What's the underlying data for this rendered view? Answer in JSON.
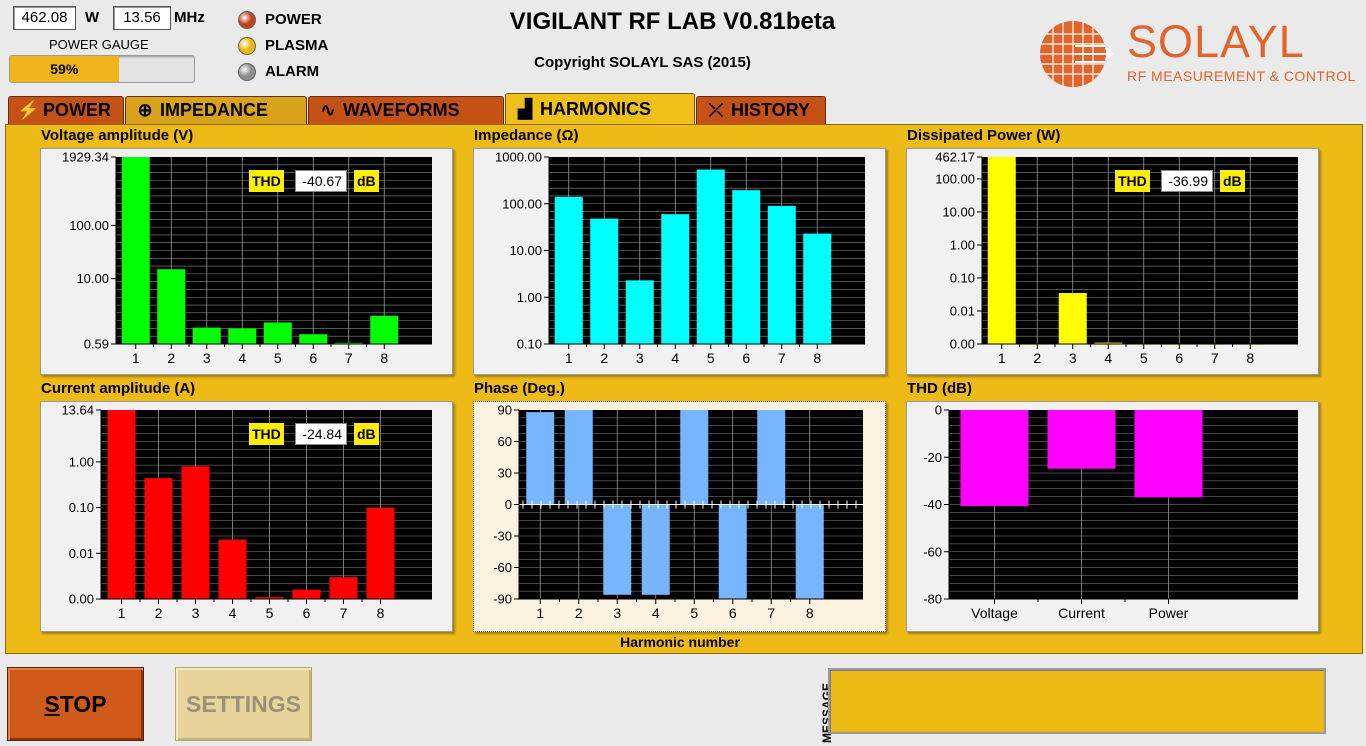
{
  "top": {
    "power_value": "462.08",
    "power_unit": "W",
    "freq_value": "13.56",
    "freq_unit": "MHz",
    "gauge_label": "POWER GAUGE",
    "gauge_text": "59%",
    "gauge_fraction": 0.59
  },
  "leds": [
    {
      "label": "POWER",
      "color": "#c3421a"
    },
    {
      "label": "PLASMA",
      "color": "#e8b80c"
    },
    {
      "label": "ALARM",
      "color": "#8e8e8e"
    }
  ],
  "title": "VIGILANT RF LAB V0.81beta",
  "copyright": "Copyright SOLAYL SAS (2015)",
  "logo": {
    "name": "SOLAYL",
    "tagline": "RF MEASUREMENT & CONTROL",
    "color": "#e1642b"
  },
  "tabs": [
    {
      "label": "POWER",
      "icon": "lightning-icon",
      "glyph": "⚡"
    },
    {
      "label": "IMPEDANCE",
      "icon": "smith-chart-icon",
      "glyph": "⊕"
    },
    {
      "label": "WAVEFORMS",
      "icon": "waveform-icon",
      "glyph": "∿"
    },
    {
      "label": "HARMONICS",
      "icon": "bar-chart-icon",
      "glyph": "▟"
    },
    {
      "label": "HISTORY",
      "icon": "history-icon",
      "glyph": "⤫"
    }
  ],
  "active_tab": "HARMONICS",
  "x_axis_title": "Harmonic number",
  "chart_data": [
    {
      "id": "voltage",
      "type": "bar",
      "title": "Voltage amplitude (V)",
      "color": "#00ff00",
      "scale": "log",
      "ylim": [
        0.59,
        1929.34
      ],
      "yticks": [
        {
          "v": 1929.34,
          "t": "1929.34"
        },
        {
          "v": 100,
          "t": "100.00"
        },
        {
          "v": 10,
          "t": "10.00"
        },
        {
          "v": 0.59,
          "t": "0.59"
        }
      ],
      "categories": [
        "1",
        "2",
        "3",
        "4",
        "5",
        "6",
        "7",
        "8"
      ],
      "values": [
        1929.34,
        15,
        1.2,
        1.15,
        1.5,
        0.9,
        0.62,
        2.0
      ],
      "thd_label": "THD",
      "thd_value": "-40.67",
      "thd_unit": "dB"
    },
    {
      "id": "impedance",
      "type": "bar",
      "title": "Impedance (Ω)",
      "color": "#00ffff",
      "scale": "log",
      "ylim": [
        0.1,
        1000
      ],
      "yticks": [
        {
          "v": 1000,
          "t": "1000.00"
        },
        {
          "v": 100,
          "t": "100.00"
        },
        {
          "v": 10,
          "t": "10.00"
        },
        {
          "v": 1,
          "t": "1.00"
        },
        {
          "v": 0.1,
          "t": "0.10"
        }
      ],
      "categories": [
        "1",
        "2",
        "3",
        "4",
        "5",
        "6",
        "7",
        "8"
      ],
      "values": [
        140,
        48,
        2.3,
        60,
        540,
        195,
        90,
        23
      ]
    },
    {
      "id": "power",
      "type": "bar",
      "title": "Dissipated Power (W)",
      "color": "#ffff00",
      "scale": "log",
      "ylim": [
        0.001,
        462.17
      ],
      "yticks": [
        {
          "v": 462.17,
          "t": "462.17"
        },
        {
          "v": 100,
          "t": "100.00"
        },
        {
          "v": 10,
          "t": "10.00"
        },
        {
          "v": 1,
          "t": "1.00"
        },
        {
          "v": 0.1,
          "t": "0.10"
        },
        {
          "v": 0.01,
          "t": "0.01"
        },
        {
          "v": 0.001,
          "t": "0.00"
        }
      ],
      "categories": [
        "1",
        "2",
        "3",
        "4",
        "5",
        "6",
        "7",
        "8"
      ],
      "values": [
        462.17,
        0.001,
        0.035,
        0.0011,
        0.001,
        0.001,
        0.001,
        0.001
      ],
      "thd_label": "THD",
      "thd_value": "-36.99",
      "thd_unit": "dB"
    },
    {
      "id": "current",
      "type": "bar",
      "title": "Current amplitude (A)",
      "color": "#ff0000",
      "scale": "log",
      "ylim": [
        0.001,
        13.64
      ],
      "yticks": [
        {
          "v": 13.64,
          "t": "13.64"
        },
        {
          "v": 1,
          "t": "1.00"
        },
        {
          "v": 0.1,
          "t": "0.10"
        },
        {
          "v": 0.01,
          "t": "0.01"
        },
        {
          "v": 0.001,
          "t": "0.00"
        }
      ],
      "categories": [
        "1",
        "2",
        "3",
        "4",
        "5",
        "6",
        "7",
        "8"
      ],
      "values": [
        13.64,
        0.44,
        0.8,
        0.02,
        0.0011,
        0.0016,
        0.003,
        0.1
      ],
      "thd_label": "THD",
      "thd_value": "-24.84",
      "thd_unit": "dB"
    },
    {
      "id": "phase",
      "type": "bar",
      "title": "Phase (Deg.)",
      "color": "#77b5fe",
      "scale": "linear",
      "ylim": [
        -90,
        90
      ],
      "yticks": [
        {
          "v": 90,
          "t": "90"
        },
        {
          "v": 60,
          "t": "60"
        },
        {
          "v": 30,
          "t": "30"
        },
        {
          "v": 0,
          "t": "0"
        },
        {
          "v": -30,
          "t": "-30"
        },
        {
          "v": -60,
          "t": "-60"
        },
        {
          "v": -90,
          "t": "-90"
        }
      ],
      "categories": [
        "1",
        "2",
        "3",
        "4",
        "5",
        "6",
        "7",
        "8"
      ],
      "values": [
        88,
        90,
        -86,
        -86,
        90,
        -90,
        90,
        -90
      ]
    },
    {
      "id": "thd",
      "type": "bar",
      "title": "THD (dB)",
      "color": "#ff00ff",
      "scale": "linear",
      "ylim": [
        -80,
        0
      ],
      "yticks": [
        {
          "v": 0,
          "t": "0"
        },
        {
          "v": -20,
          "t": "-20"
        },
        {
          "v": -40,
          "t": "-40"
        },
        {
          "v": -60,
          "t": "-60"
        },
        {
          "v": -80,
          "t": "-80"
        }
      ],
      "categories": [
        "Voltage",
        "Current",
        "Power"
      ],
      "values": [
        -40.67,
        -24.84,
        -36.99
      ]
    }
  ],
  "buttons": {
    "stop": "STOP",
    "settings": "SETTINGS"
  },
  "message_label": "MESSAGE"
}
